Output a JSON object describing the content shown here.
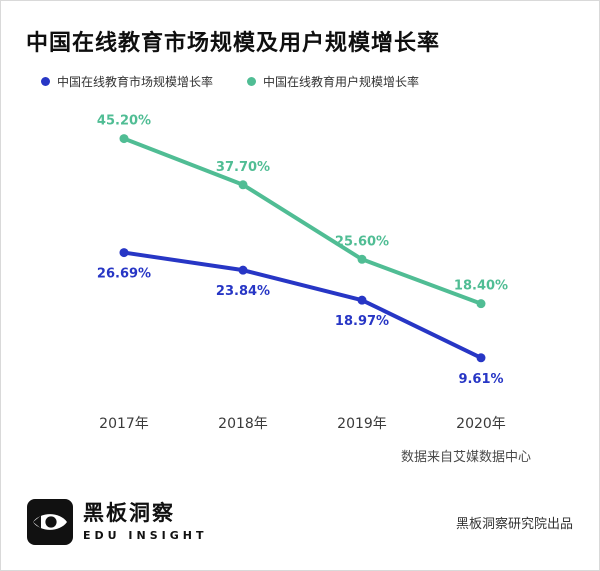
{
  "header": {
    "title": "中国在线教育市场规模及用户规模增长率"
  },
  "legend": [
    {
      "label": "中国在线教育市场规模增长率",
      "color": "#2736C5"
    },
    {
      "label": "中国在线教育用户规模增长率",
      "color": "#50BD94"
    }
  ],
  "chart_data": {
    "type": "line",
    "title": "中国在线教育市场规模及用户规模增长率",
    "categories": [
      "2017年",
      "2018年",
      "2019年",
      "2020年"
    ],
    "series": [
      {
        "name": "中国在线教育市场规模增长率",
        "color": "#2736C5",
        "values": [
          26.69,
          23.84,
          18.97,
          9.61
        ],
        "label_position": "below"
      },
      {
        "name": "中国在线教育用户规模增长率",
        "color": "#50BD94",
        "values": [
          45.2,
          37.7,
          25.6,
          18.4
        ],
        "label_position": "above"
      }
    ],
    "ylim": [
      0,
      50
    ],
    "grid": false,
    "legend_position": "top-left",
    "xlabel": "",
    "ylabel": ""
  },
  "source_note": "数据来自艾媒数据中心",
  "footer": {
    "brand_cn": "黑板洞察",
    "brand_en": "EDU INSIGHT",
    "credit": "黑板洞察研究院出品"
  }
}
